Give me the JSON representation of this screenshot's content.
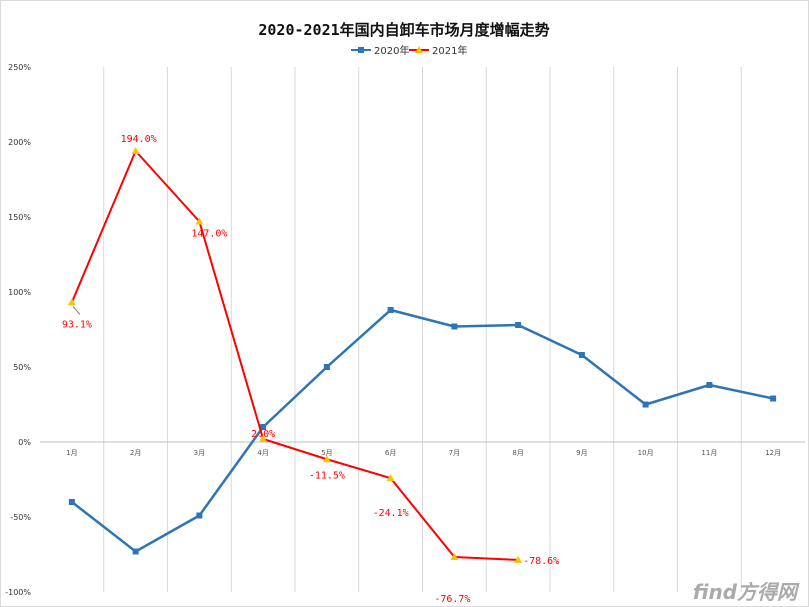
{
  "watermark": "find方得网",
  "chart_data": {
    "type": "line",
    "title": "2020-2021年国内自卸车市场月度增幅走势",
    "categories": [
      "1月",
      "2月",
      "3月",
      "4月",
      "5月",
      "6月",
      "7月",
      "8月",
      "9月",
      "10月",
      "11月",
      "12月"
    ],
    "ylim": [
      -100,
      250
    ],
    "yticks": [
      -100,
      -50,
      0,
      50,
      100,
      150,
      200,
      250
    ],
    "ytick_labels": [
      "-100%",
      "-50%",
      "0%",
      "50%",
      "100%",
      "150%",
      "200%",
      "250%"
    ],
    "grid": true,
    "legend_position": "top-center",
    "series": [
      {
        "name": "2020年",
        "color": "#2e75b6",
        "marker": "square",
        "values": [
          -40,
          -73,
          -49,
          10,
          50,
          88,
          77,
          78,
          58,
          25,
          38,
          29
        ]
      },
      {
        "name": "2021年",
        "color": "#ff0000",
        "marker": "triangle",
        "marker_color": "#ffc000",
        "values": [
          93.1,
          194.0,
          147.0,
          2.0,
          -11.5,
          -24.1,
          -76.7,
          -78.6,
          null,
          null,
          null,
          null
        ],
        "data_labels": [
          "93.1%",
          "194.0%",
          "147.0%",
          "2.0%",
          "-11.5%",
          "-24.1%",
          "-76.7%",
          "-78.6%",
          null,
          null,
          null,
          null
        ]
      }
    ]
  }
}
